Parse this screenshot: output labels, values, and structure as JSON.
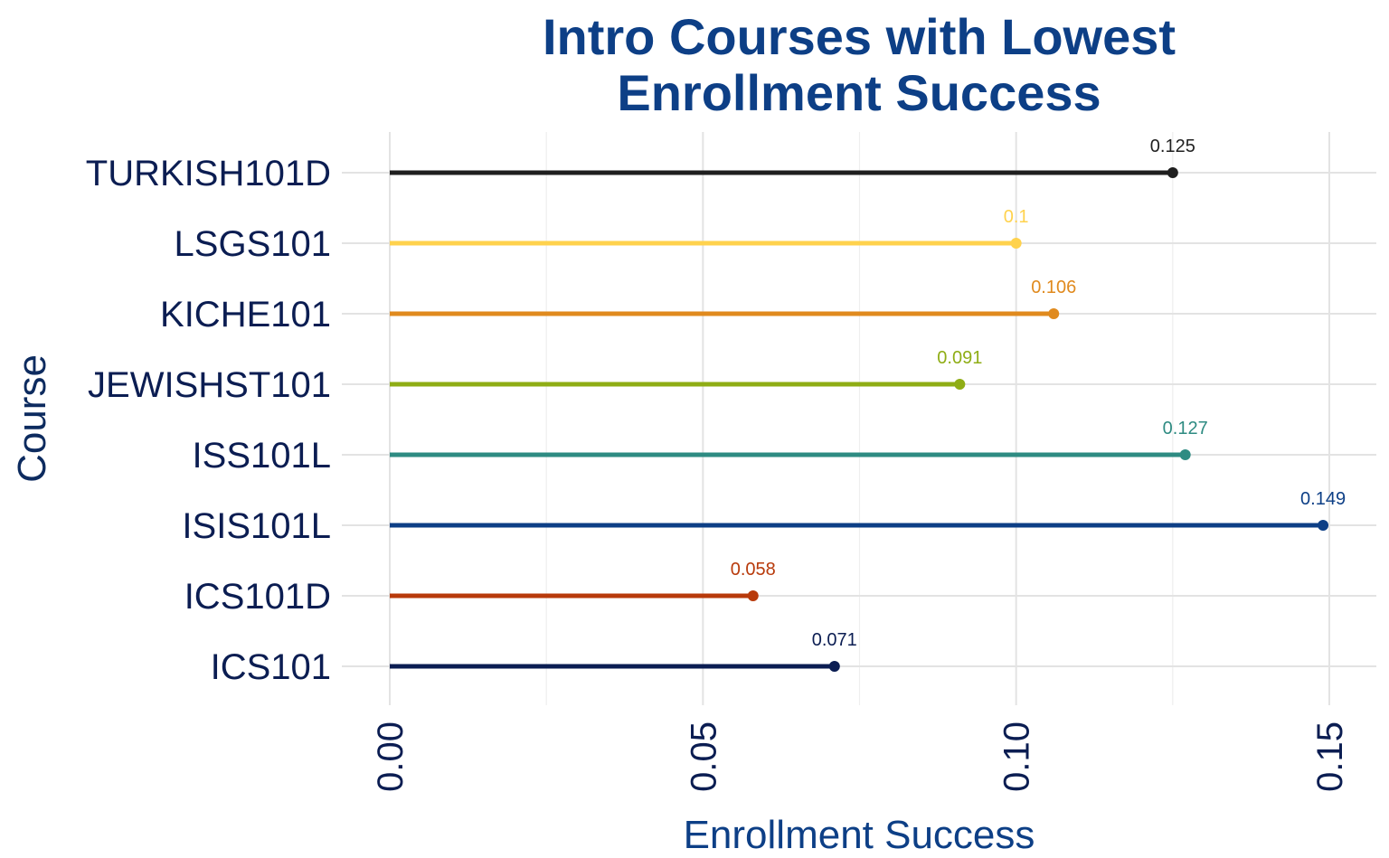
{
  "chart_data": {
    "type": "lollipop",
    "title": [
      "Intro Courses with Lowest",
      "Enrollment Success"
    ],
    "xlabel": "Enrollment Success",
    "ylabel": "Course",
    "xlim": [
      0,
      0.15
    ],
    "xticks": [
      0.0,
      0.05,
      0.1,
      0.15
    ],
    "xtick_labels": [
      "0.00",
      "0.05",
      "0.10",
      "0.15"
    ],
    "grid": true,
    "legend": "none",
    "categories": [
      "TURKISH101D",
      "LSGS101",
      "KICHE101",
      "JEWISHST101",
      "ISS101L",
      "ISIS101L",
      "ICS101D",
      "ICS101"
    ],
    "values": [
      0.125,
      0.1,
      0.106,
      0.091,
      0.127,
      0.149,
      0.058,
      0.071
    ],
    "value_labels": [
      "0.125",
      "0.1",
      "0.106",
      "0.091",
      "0.127",
      "0.149",
      "0.058",
      "0.071"
    ],
    "colors": [
      "#1f1f1f",
      "#ffd24d",
      "#e08a1e",
      "#8fad15",
      "#2e8b82",
      "#0d3f86",
      "#b83a0b",
      "#0b1d52"
    ]
  }
}
